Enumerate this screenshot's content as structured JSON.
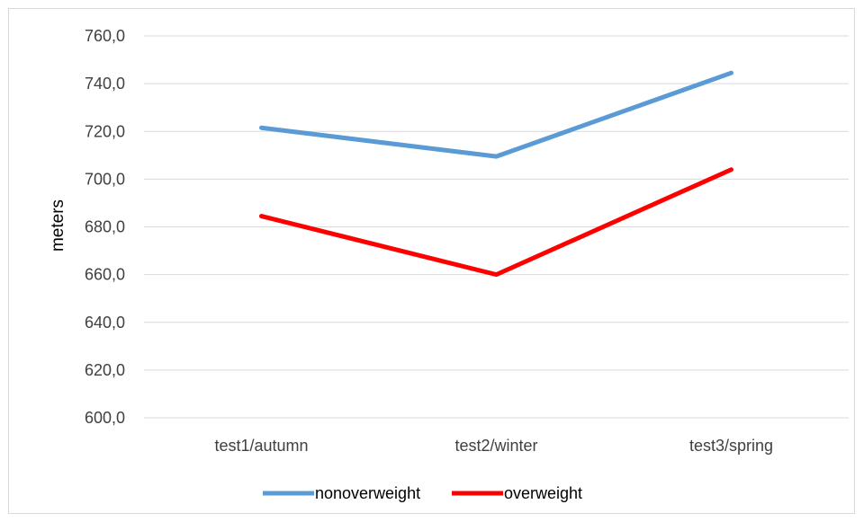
{
  "chart_data": {
    "type": "line",
    "title": "",
    "xlabel": "",
    "ylabel": "meters",
    "categories": [
      "test1/autumn",
      "test2/winter",
      "test3/spring"
    ],
    "ylim": [
      600,
      760
    ],
    "yticks": [
      600,
      620,
      640,
      660,
      680,
      700,
      720,
      740,
      760
    ],
    "ytick_labels": [
      "600,0",
      "620,0",
      "640,0",
      "660,0",
      "680,0",
      "700,0",
      "720,0",
      "740,0",
      "760,0"
    ],
    "grid": true,
    "legend_position": "bottom",
    "series": [
      {
        "name": "nonoverweight",
        "color": "#5b9bd5",
        "values": [
          721.5,
          709.5,
          744.5
        ]
      },
      {
        "name": "overweight",
        "color": "#ff0000",
        "values": [
          684.5,
          660,
          704
        ]
      }
    ]
  }
}
